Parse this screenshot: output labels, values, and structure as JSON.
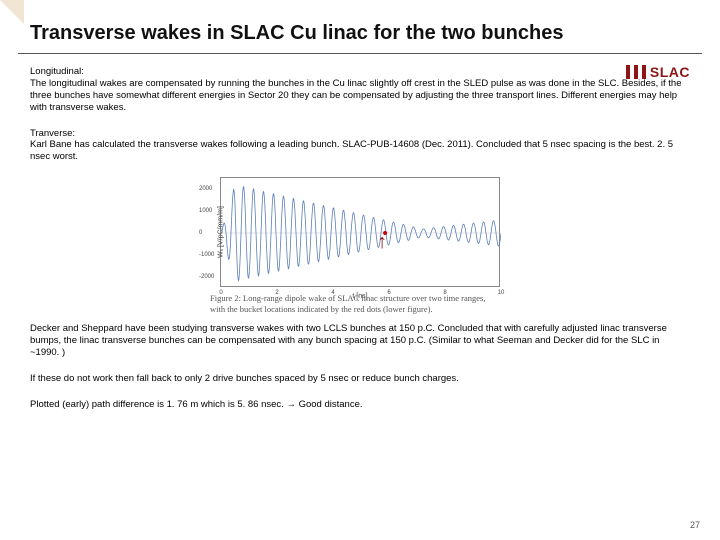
{
  "title": "Transverse wakes in SLAC Cu linac for the two bunches",
  "logo_text": "SLAC",
  "paragraphs": {
    "p1_head": "Longitudinal:",
    "p1_body": "The longitudinal wakes are compensated by running the bunches in the Cu linac slightly off crest in the SLED pulse as was done in the SLC. Besides, if the three bunches have somewhat different energies in Sector 20 they can be compensated by adjusting the three transport lines. Different energies may help with transverse wakes.",
    "p2_head": "Tranverse:",
    "p2_body": "Karl Bane has calculated the transverse wakes following a leading bunch. SLAC-PUB-14608 (Dec. 2011). Concluded that 5 nsec spacing is the best. 2. 5 nsec worst.",
    "p3": "Decker and Sheppard have been studying transverse wakes with two LCLS bunches at 150 p.C. Concluded that with carefully adjusted linac transverse bumps, the linac transverse bunches can be compensated with any bunch spacing at 150 p.C. (Similar to what Seeman and Decker did for the SLC in  ~1990. )",
    "p4": "If these do not work then fall back to only 2 drive bunches spaced by 5 nsec or reduce bunch charges.",
    "p5": "Plotted  (early) path difference is 1. 76 m which is 5. 86 nsec. → Good distance."
  },
  "chart": {
    "type": "line",
    "ylabel": "Wₓ [V/pC/mm/m]",
    "xlabel": "t [ns]",
    "xlim": [
      0,
      10
    ],
    "ylim": [
      -2500,
      2500
    ],
    "xtick_step": 2,
    "yticks": [
      -2000,
      -1000,
      0,
      1000,
      2000
    ],
    "line_color": "#5b7fb8",
    "line_width": 0.8,
    "background_color": "#ffffff",
    "border_color": "#888888",
    "marker_color": "#cc0000",
    "marker_x": [
      5.86
    ],
    "wave": {
      "freq_ghz": 2.8,
      "env_peak_amp": 2200,
      "env_peak_t": 0.5,
      "env_min_amp": 180,
      "env_min_t": 7.2,
      "env_tail_amp": 600,
      "env_tail_t": 10
    },
    "arrow_color": "#8c1515"
  },
  "caption": "Figure 2: Long-range dipole wake of SLAC linac structure over two time ranges, with the bucket locations indicated by the red dots (lower figure).",
  "page_number": "27"
}
